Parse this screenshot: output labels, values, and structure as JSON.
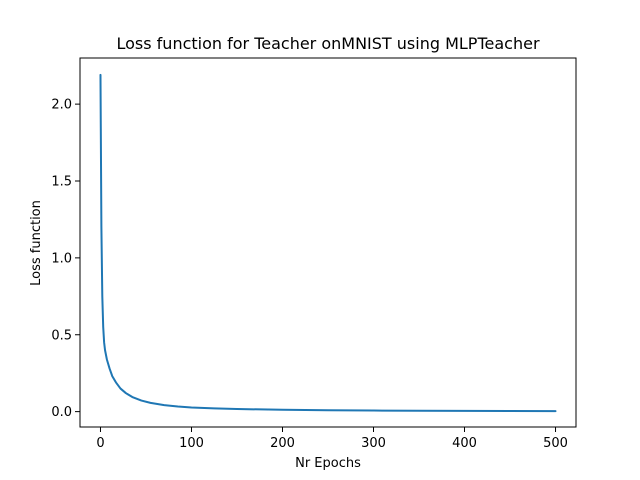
{
  "chart_data": {
    "type": "line",
    "title": "Loss function for Teacher onMNIST using MLPTeacher",
    "xlabel": "Nr Epochs",
    "ylabel": "Loss function",
    "xlim": [
      -22.5,
      522.5
    ],
    "ylim": [
      -0.1,
      2.3
    ],
    "xticks": [
      0,
      100,
      200,
      300,
      400,
      500
    ],
    "xtick_labels": [
      "0",
      "100",
      "200",
      "300",
      "400",
      "500"
    ],
    "yticks": [
      0.0,
      0.5,
      1.0,
      1.5,
      2.0
    ],
    "ytick_labels": [
      "0.0",
      "0.5",
      "1.0",
      "1.5",
      "2.0"
    ],
    "grid": false,
    "series": [
      {
        "color": "#1f77b4",
        "x": [
          0,
          1,
          2,
          3,
          4,
          5,
          7,
          10,
          13,
          17,
          22,
          28,
          35,
          45,
          55,
          70,
          85,
          100,
          125,
          150,
          200,
          250,
          300,
          350,
          400,
          450,
          500
        ],
        "y": [
          2.19,
          1.2,
          0.75,
          0.55,
          0.45,
          0.4,
          0.34,
          0.28,
          0.23,
          0.19,
          0.15,
          0.12,
          0.095,
          0.072,
          0.057,
          0.042,
          0.033,
          0.027,
          0.021,
          0.017,
          0.012,
          0.009,
          0.007,
          0.006,
          0.005,
          0.004,
          0.003
        ]
      }
    ]
  }
}
